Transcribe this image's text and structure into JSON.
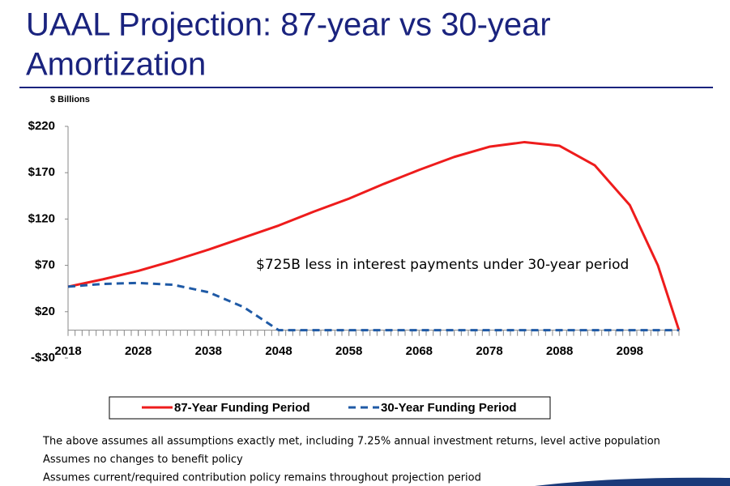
{
  "chart_data": {
    "type": "line",
    "title_lines": [
      "UAAL Projection: 87-year vs 30-year",
      "Amortization"
    ],
    "y_axis_label": "$ Billions",
    "annotation": "$725B less in interest payments under 30-year period",
    "x": [
      2018,
      2023,
      2028,
      2033,
      2038,
      2043,
      2048,
      2053,
      2058,
      2063,
      2068,
      2073,
      2078,
      2083,
      2088,
      2093,
      2098,
      2102,
      2105
    ],
    "series": [
      {
        "name": "87-Year Funding Period",
        "color": "#ee1c1c",
        "dash": false,
        "values": [
          47,
          55,
          64,
          75,
          87,
          100,
          113,
          128,
          142,
          158,
          173,
          187,
          198,
          203,
          199,
          178,
          135,
          70,
          0
        ]
      },
      {
        "name": "30-Year Funding Period",
        "color": "#1f5aa6",
        "dash": true,
        "values": [
          47,
          50,
          51,
          49,
          41,
          25,
          0,
          0,
          0,
          0,
          0,
          0,
          0,
          0,
          0,
          0,
          0,
          0,
          0
        ]
      }
    ],
    "xlim": [
      2018,
      2105
    ],
    "xticks": [
      2018,
      2028,
      2038,
      2048,
      2058,
      2068,
      2078,
      2088,
      2098
    ],
    "ylim": [
      -30,
      220
    ],
    "yticks": [
      {
        "value": -30,
        "label": "-$30"
      },
      {
        "value": 20,
        "label": "$20"
      },
      {
        "value": 70,
        "label": "$70"
      },
      {
        "value": 120,
        "label": "$120"
      },
      {
        "value": 170,
        "label": "$170"
      },
      {
        "value": 220,
        "label": "$220"
      }
    ],
    "grid": false,
    "legend": "bottom",
    "notes": [
      "The above assumes all assumptions exactly met, including 7.25% annual investment returns, level active population",
      "Assumes no changes to benefit policy",
      "Assumes current/required contribution policy remains throughout projection period"
    ]
  }
}
